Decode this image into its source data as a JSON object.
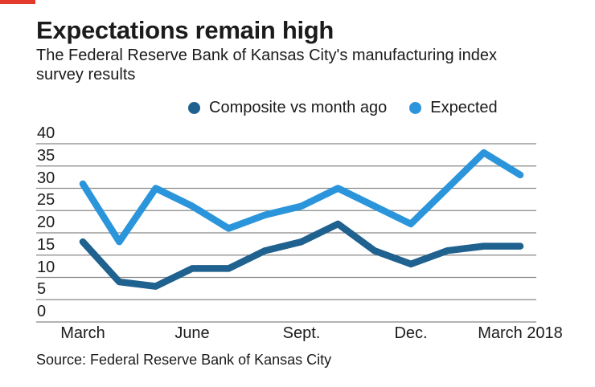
{
  "accent_color": "#e23b2e",
  "header": {
    "title": "Expectations remain high",
    "subtitle": "The Federal Reserve Bank of Kansas City's manufacturing index survey results"
  },
  "legend": [
    {
      "label": "Composite vs month ago",
      "color": "#1F618F"
    },
    {
      "label": "Expected",
      "color": "#2B95DB"
    }
  ],
  "source": "Source: Federal Reserve Bank of Kansas City",
  "colors": {
    "composite_line": "#1F618F",
    "expected_line": "#2B95DB",
    "gridline": "#878787",
    "text": "#1b1b1b"
  },
  "chart_data": {
    "type": "line",
    "x": [
      0,
      1,
      2,
      3,
      4,
      5,
      6,
      7,
      8,
      9,
      10,
      11,
      12
    ],
    "x_ticks": [
      {
        "index": 0,
        "label": "March"
      },
      {
        "index": 3,
        "label": "June"
      },
      {
        "index": 6,
        "label": "Sept."
      },
      {
        "index": 9,
        "label": "Dec."
      },
      {
        "index": 12,
        "label": "March 2018"
      }
    ],
    "y_tick_labels": [
      "0",
      "5",
      "10",
      "15",
      "20",
      "25",
      "30",
      "35",
      "40"
    ],
    "series": [
      {
        "name": "Composite vs month ago",
        "color": "#1F618F",
        "values": [
          18,
          9,
          8,
          12,
          12,
          16,
          18,
          22,
          16,
          13,
          16,
          17,
          17
        ]
      },
      {
        "name": "Expected",
        "color": "#2B95DB",
        "values": [
          31,
          18,
          30,
          26,
          21,
          24,
          26,
          30,
          26,
          22,
          30,
          38,
          33
        ]
      }
    ],
    "ylim": [
      0,
      40
    ],
    "ytick_step": 5,
    "grid": true,
    "legend_position": "top"
  }
}
